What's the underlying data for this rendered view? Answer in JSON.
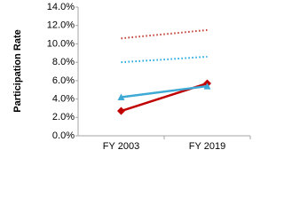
{
  "chart_data": {
    "type": "line",
    "y_label": "Participation Rate",
    "categories": [
      "FY 2003",
      "FY 2019"
    ],
    "series": [
      {
        "color": "#c00000",
        "style": "solid",
        "marker": "diamond",
        "values": [
          2.7,
          5.7
        ]
      },
      {
        "color": "#3fa9d6",
        "style": "solid",
        "marker": "triangle",
        "values": [
          4.2,
          5.4
        ]
      },
      {
        "color": "#c0392b",
        "style": "dotted",
        "values": [
          10.6,
          11.5
        ]
      },
      {
        "color": "#1aa7e0",
        "style": "dotted",
        "values": [
          8.0,
          8.6
        ]
      }
    ],
    "ylim": [
      0,
      14
    ],
    "yticks": [
      {
        "value": 0,
        "label": "0.0%"
      },
      {
        "value": 2,
        "label": "2.0%"
      },
      {
        "value": 4,
        "label": "4.0%"
      },
      {
        "value": 6,
        "label": "6.0%"
      },
      {
        "value": 8,
        "label": "8.0%"
      },
      {
        "value": 10,
        "label": "10.0%"
      },
      {
        "value": 12,
        "label": "12.0%"
      },
      {
        "value": 14,
        "label": "14.0%"
      }
    ],
    "grid": false
  }
}
